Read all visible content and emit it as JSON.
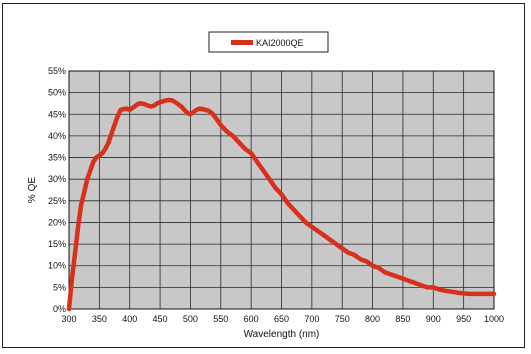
{
  "chart_data": {
    "type": "line",
    "xlabel": "Wavelength (nm)",
    "ylabel": "% QE",
    "xlim": [
      300,
      1000
    ],
    "ylim": [
      0,
      55
    ],
    "x_ticks": [
      300,
      350,
      400,
      450,
      500,
      550,
      600,
      650,
      700,
      750,
      800,
      850,
      900,
      950,
      1000
    ],
    "y_ticks": [
      "0%",
      "5%",
      "10%",
      "15%",
      "20%",
      "25%",
      "30%",
      "35%",
      "40%",
      "45%",
      "50%",
      "55%"
    ],
    "grid": true,
    "legend_position": "top-center",
    "colors": {
      "series": "#d9301c",
      "plot_bg": "#c8c8c8",
      "grid": "#2a2a2a"
    },
    "series": [
      {
        "name": "KAI2000QE",
        "x": [
          300,
          305,
          310,
          315,
          320,
          325,
          330,
          335,
          340,
          345,
          350,
          355,
          360,
          365,
          370,
          375,
          380,
          385,
          390,
          395,
          400,
          405,
          410,
          415,
          420,
          425,
          430,
          435,
          440,
          445,
          450,
          455,
          460,
          465,
          470,
          475,
          480,
          485,
          490,
          495,
          500,
          505,
          510,
          515,
          520,
          525,
          530,
          535,
          540,
          545,
          550,
          560,
          570,
          580,
          590,
          600,
          610,
          620,
          630,
          640,
          650,
          660,
          670,
          680,
          690,
          700,
          710,
          720,
          730,
          740,
          750,
          760,
          770,
          780,
          790,
          800,
          810,
          820,
          830,
          840,
          850,
          860,
          870,
          880,
          890,
          900,
          910,
          920,
          930,
          940,
          950,
          960,
          970,
          980,
          990,
          1000
        ],
        "y": [
          0,
          7,
          13,
          19,
          24,
          27,
          30,
          32,
          34,
          35,
          35.5,
          36,
          37,
          38.5,
          40.5,
          42.5,
          44.5,
          46,
          46.2,
          46.3,
          46,
          46.5,
          47,
          47.5,
          47.5,
          47.3,
          47,
          46.8,
          47,
          47.5,
          47.8,
          48,
          48.2,
          48.3,
          48.2,
          47.8,
          47.3,
          46.8,
          46,
          45.3,
          45,
          45.5,
          46,
          46.3,
          46.2,
          46,
          45.8,
          45.3,
          44.5,
          43.5,
          42.5,
          41,
          40,
          38.5,
          37,
          36,
          34,
          32,
          30,
          28,
          26.5,
          24.5,
          23,
          21.5,
          20,
          19,
          18,
          17,
          16,
          15,
          14,
          13,
          12.5,
          11.5,
          11,
          10,
          9.5,
          8.5,
          8,
          7.5,
          7,
          6.5,
          6,
          5.5,
          5,
          5,
          4.5,
          4.2,
          4,
          3.8,
          3.6,
          3.5,
          3.5,
          3.5,
          3.5,
          3.5
        ]
      }
    ]
  }
}
